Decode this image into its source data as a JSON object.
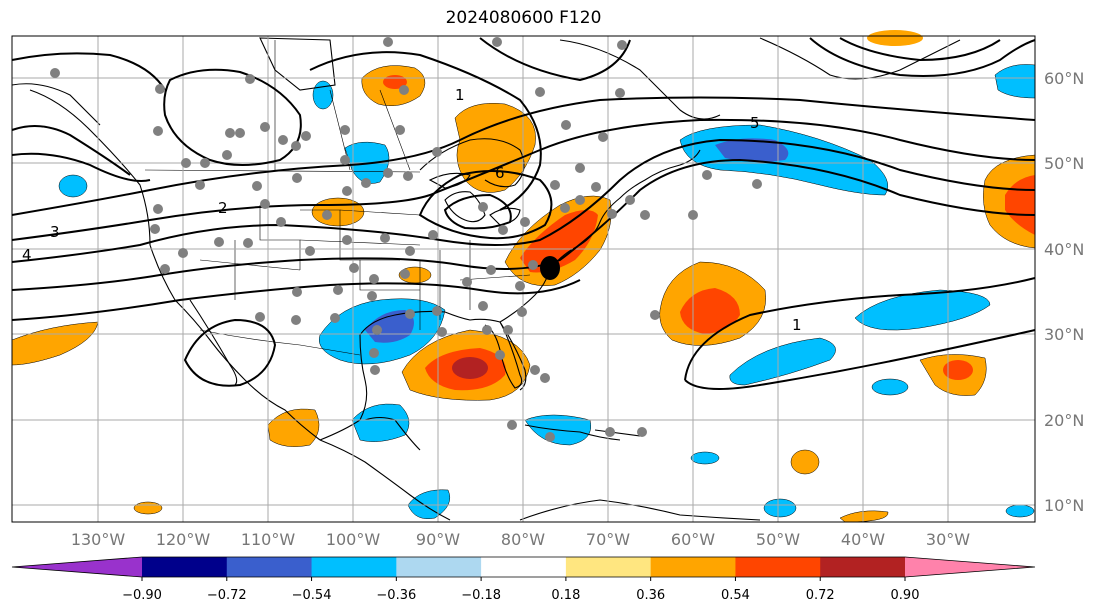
{
  "title": "2024080600 F120",
  "lon_labels": [
    "130°W",
    "120°W",
    "110°W",
    "100°W",
    "90°W",
    "80°W",
    "70°W",
    "60°W",
    "50°W",
    "40°W",
    "30°W"
  ],
  "lat_labels": [
    "60°N",
    "50°N",
    "40°N",
    "30°N",
    "20°N",
    "10°N"
  ],
  "contour_labels": [
    "1",
    "2",
    "3",
    "4",
    "5",
    "6",
    "1"
  ],
  "colorbar": {
    "colors": [
      "#9932cc",
      "#00008b",
      "#3a5fcd",
      "#00bfff",
      "#add8f0",
      "#ffffff",
      "#ffe680",
      "#ffa500",
      "#ff4500",
      "#b22222",
      "#ff82ab"
    ],
    "tick_labels": [
      "−0.90",
      "−0.72",
      "−0.54",
      "−0.36",
      "−0.18",
      "0.18",
      "0.36",
      "0.54",
      "0.72",
      "0.90"
    ]
  },
  "colors": {
    "land": "#000000",
    "grid": "#aaaaaa",
    "station": "#808080",
    "orange": "#ffa500",
    "red": "#ff4500",
    "darkred": "#b22222",
    "lightblue": "#00bfff",
    "blue": "#3a5fcd"
  }
}
